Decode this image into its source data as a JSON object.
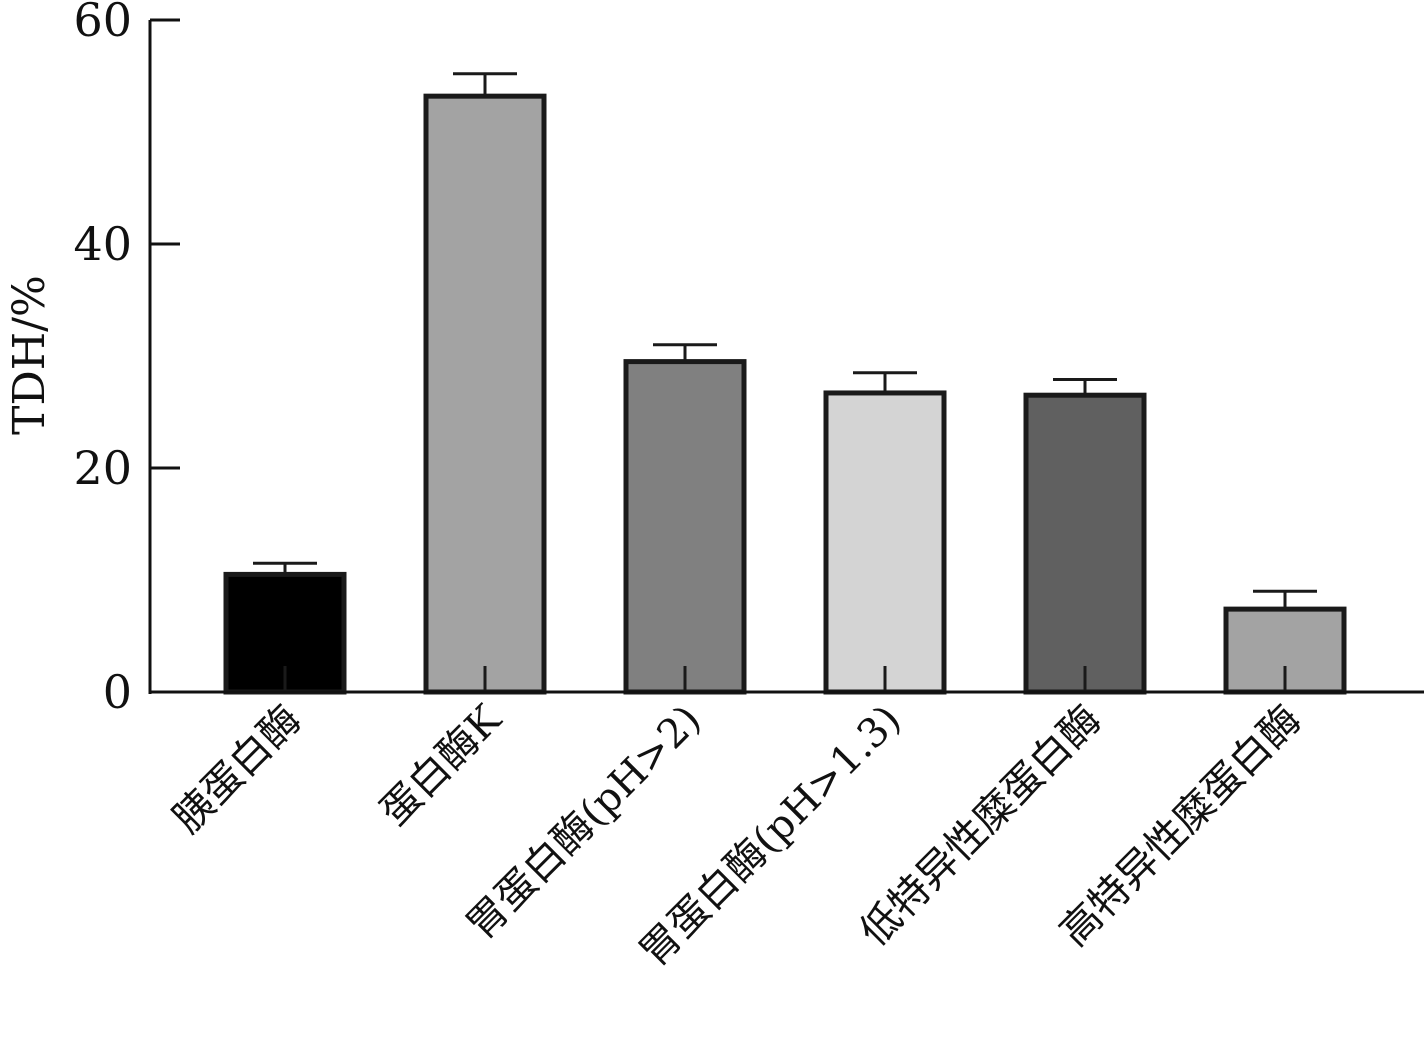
{
  "chart_data": {
    "type": "bar",
    "title": "",
    "ylabel": "TDH/%",
    "xlabel": "",
    "ylim": [
      0,
      60
    ],
    "yticks": [
      "0",
      "20",
      "40",
      "60"
    ],
    "categories": [
      "胰蛋白酶",
      "蛋白酶K",
      "胃蛋白酶(pH>2)",
      "胃蛋白酶(pH>1.3)",
      "低特异性糜蛋白酶",
      "高特异性糜蛋白酶"
    ],
    "values": [
      10.5,
      53.2,
      29.5,
      26.7,
      26.5,
      7.4
    ],
    "errors": [
      1.0,
      2.0,
      1.5,
      1.8,
      1.4,
      1.6
    ],
    "colors": [
      "#000000",
      "#a3a3a3",
      "#808080",
      "#d4d4d4",
      "#606060",
      "#a3a3a3"
    ],
    "grid": false,
    "legend": "none"
  }
}
